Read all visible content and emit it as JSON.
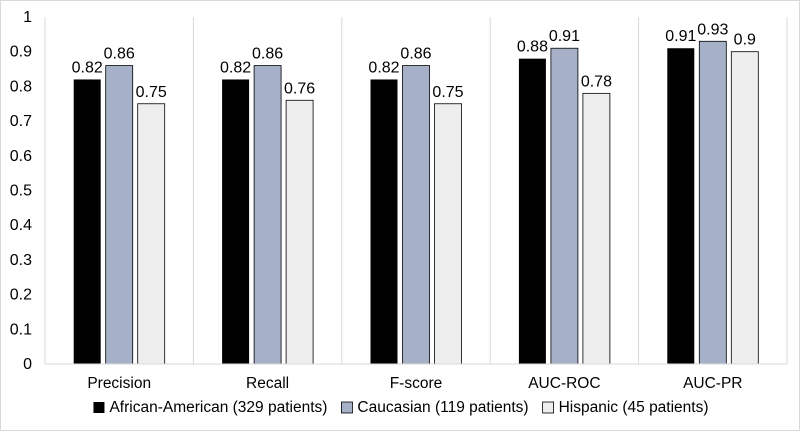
{
  "chart_data": {
    "type": "bar",
    "title": "",
    "xlabel": "",
    "ylabel": "",
    "categories": [
      "Precision",
      "Recall",
      "F-score",
      "AUC-ROC",
      "AUC-PR"
    ],
    "series": [
      {
        "name": "African-American (329 patients)",
        "color": "#000000",
        "values": [
          0.82,
          0.82,
          0.82,
          0.88,
          0.91
        ],
        "labels": [
          "0.82",
          "0.82",
          "0.82",
          "0.88",
          "0.91"
        ]
      },
      {
        "name": "Caucasian (119 patients)",
        "color": "#a6b1c7",
        "values": [
          0.86,
          0.86,
          0.86,
          0.91,
          0.93
        ],
        "labels": [
          "0.86",
          "0.86",
          "0.86",
          "0.91",
          "0.93"
        ]
      },
      {
        "name": "Hispanic (45 patients)",
        "color": "#eeeeee",
        "values": [
          0.75,
          0.76,
          0.75,
          0.78,
          0.9
        ],
        "labels": [
          "0.75",
          "0.76",
          "0.75",
          "0.78",
          "0.9"
        ]
      }
    ],
    "ylim": [
      0,
      1
    ],
    "yticks": [
      "0",
      "0.1",
      "0.2",
      "0.3",
      "0.4",
      "0.5",
      "0.6",
      "0.7",
      "0.8",
      "0.9",
      "1"
    ],
    "grid": {
      "vertical_separators": true,
      "horizontal": false
    },
    "legend": "bottom"
  }
}
